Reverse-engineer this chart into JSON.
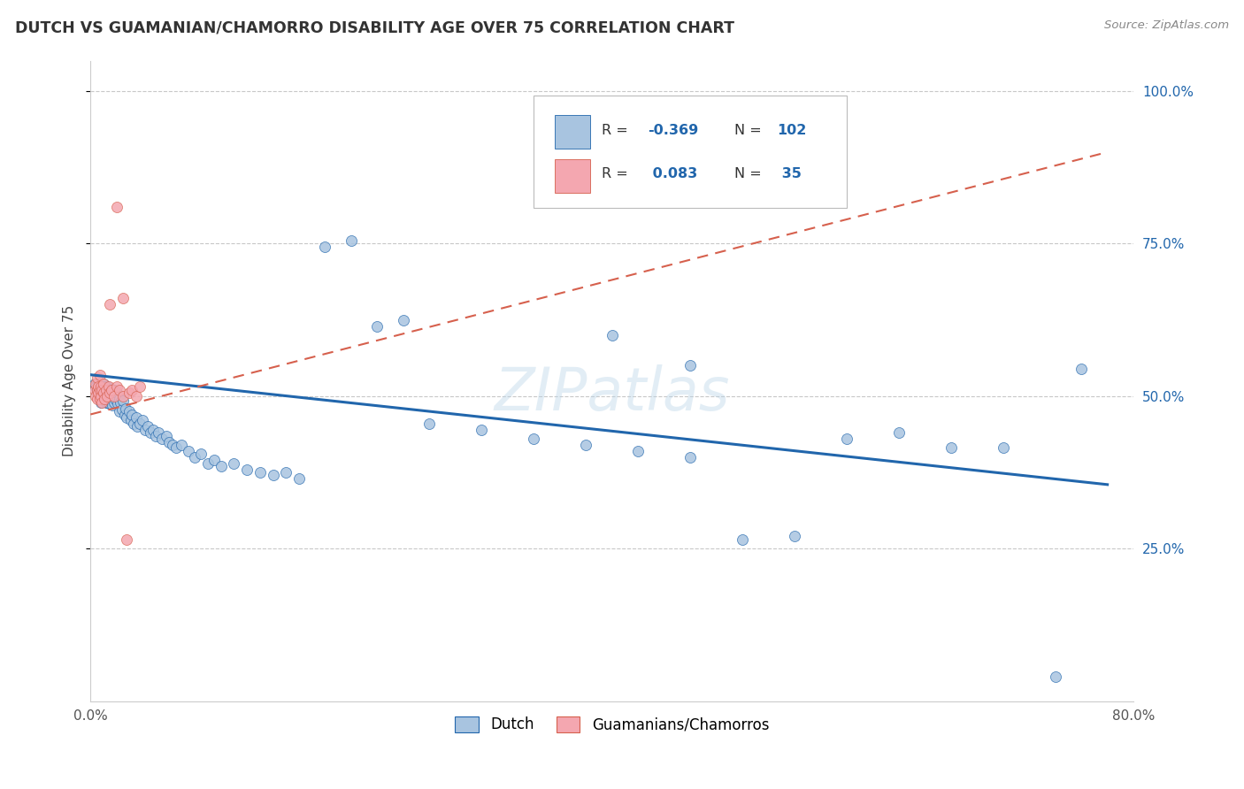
{
  "title": "DUTCH VS GUAMANIAN/CHAMORRO DISABILITY AGE OVER 75 CORRELATION CHART",
  "source": "Source: ZipAtlas.com",
  "ylabel": "Disability Age Over 75",
  "xlim": [
    0.0,
    0.8
  ],
  "ylim": [
    0.0,
    1.05
  ],
  "ytick_positions": [
    0.25,
    0.5,
    0.75,
    1.0
  ],
  "xtick_positions": [
    0.0,
    0.8
  ],
  "blue_color": "#a8c4e0",
  "pink_color": "#f4a7b0",
  "line_blue_color": "#2166ac",
  "line_pink_color": "#d6604d",
  "background_color": "#ffffff",
  "grid_color": "#c8c8c8",
  "watermark": "ZIPatlas",
  "dutch_x": [
    0.003,
    0.004,
    0.005,
    0.005,
    0.006,
    0.006,
    0.006,
    0.007,
    0.007,
    0.007,
    0.008,
    0.008,
    0.008,
    0.008,
    0.009,
    0.009,
    0.009,
    0.01,
    0.01,
    0.01,
    0.01,
    0.011,
    0.011,
    0.012,
    0.012,
    0.012,
    0.013,
    0.013,
    0.014,
    0.014,
    0.015,
    0.015,
    0.015,
    0.016,
    0.016,
    0.017,
    0.017,
    0.018,
    0.018,
    0.019,
    0.02,
    0.021,
    0.022,
    0.022,
    0.023,
    0.024,
    0.025,
    0.026,
    0.027,
    0.028,
    0.03,
    0.031,
    0.032,
    0.033,
    0.035,
    0.036,
    0.038,
    0.04,
    0.042,
    0.044,
    0.046,
    0.048,
    0.05,
    0.052,
    0.055,
    0.058,
    0.06,
    0.063,
    0.066,
    0.07,
    0.075,
    0.08,
    0.085,
    0.09,
    0.095,
    0.1,
    0.11,
    0.12,
    0.13,
    0.14,
    0.15,
    0.16,
    0.18,
    0.2,
    0.22,
    0.24,
    0.26,
    0.3,
    0.34,
    0.38,
    0.42,
    0.46,
    0.5,
    0.54,
    0.58,
    0.62,
    0.66,
    0.7,
    0.74,
    0.76,
    0.4,
    0.46
  ],
  "dutch_y": [
    0.52,
    0.515,
    0.51,
    0.505,
    0.52,
    0.515,
    0.505,
    0.51,
    0.5,
    0.495,
    0.52,
    0.51,
    0.5,
    0.49,
    0.515,
    0.505,
    0.495,
    0.52,
    0.51,
    0.505,
    0.495,
    0.515,
    0.5,
    0.51,
    0.5,
    0.49,
    0.515,
    0.495,
    0.505,
    0.488,
    0.51,
    0.5,
    0.488,
    0.512,
    0.492,
    0.505,
    0.485,
    0.51,
    0.49,
    0.495,
    0.505,
    0.488,
    0.495,
    0.475,
    0.49,
    0.478,
    0.492,
    0.47,
    0.48,
    0.465,
    0.475,
    0.46,
    0.47,
    0.455,
    0.465,
    0.45,
    0.455,
    0.46,
    0.445,
    0.45,
    0.44,
    0.445,
    0.435,
    0.44,
    0.43,
    0.435,
    0.425,
    0.42,
    0.415,
    0.42,
    0.41,
    0.4,
    0.405,
    0.39,
    0.395,
    0.385,
    0.39,
    0.38,
    0.375,
    0.37,
    0.375,
    0.365,
    0.745,
    0.755,
    0.615,
    0.625,
    0.455,
    0.445,
    0.43,
    0.42,
    0.41,
    0.4,
    0.265,
    0.27,
    0.43,
    0.44,
    0.415,
    0.415,
    0.04,
    0.545,
    0.6,
    0.55
  ],
  "chamorro_x": [
    0.003,
    0.004,
    0.004,
    0.005,
    0.005,
    0.005,
    0.006,
    0.006,
    0.007,
    0.007,
    0.007,
    0.008,
    0.008,
    0.009,
    0.009,
    0.01,
    0.01,
    0.011,
    0.012,
    0.013,
    0.014,
    0.015,
    0.016,
    0.018,
    0.02,
    0.022,
    0.025,
    0.028,
    0.03,
    0.032,
    0.035,
    0.038,
    0.015,
    0.02,
    0.025
  ],
  "chamorro_y": [
    0.51,
    0.5,
    0.52,
    0.495,
    0.51,
    0.53,
    0.505,
    0.515,
    0.495,
    0.51,
    0.535,
    0.5,
    0.515,
    0.49,
    0.51,
    0.505,
    0.52,
    0.495,
    0.51,
    0.5,
    0.515,
    0.505,
    0.51,
    0.5,
    0.515,
    0.51,
    0.5,
    0.265,
    0.505,
    0.51,
    0.5,
    0.515,
    0.65,
    0.81,
    0.66
  ],
  "blue_line_x0": 0.0,
  "blue_line_x1": 0.78,
  "blue_line_y0": 0.535,
  "blue_line_y1": 0.355,
  "pink_line_x0": 0.0,
  "pink_line_x1": 0.78,
  "pink_line_y0": 0.47,
  "pink_line_y1": 0.9
}
